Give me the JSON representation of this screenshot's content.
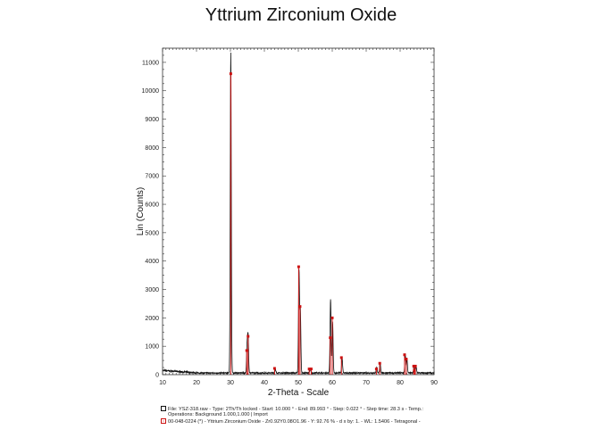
{
  "page": {
    "title": "Yttrium Zirconium Oxide"
  },
  "chart_data": {
    "type": "line",
    "title": "Yttrium Zirconium Oxide",
    "xlabel": "2-Theta - Scale",
    "ylabel": "Lin (Counts)",
    "xlim": [
      10,
      90
    ],
    "ylim": [
      0,
      11500
    ],
    "xticks": [
      10,
      20,
      30,
      40,
      50,
      60,
      70,
      80,
      90
    ],
    "yticks": [
      0,
      1000,
      2000,
      3000,
      4000,
      5000,
      6000,
      7000,
      8000,
      9000,
      10000,
      11000
    ],
    "grid": false,
    "series": [
      {
        "color": "#111111",
        "background": 60,
        "background_low_angle": {
          "start": 10,
          "end": 20,
          "value": 150
        },
        "peaks": [
          {
            "x": 30.1,
            "y": 11300,
            "w": 0.15
          },
          {
            "x": 34.9,
            "y": 900,
            "w": 0.15
          },
          {
            "x": 35.2,
            "y": 1300,
            "w": 0.15
          },
          {
            "x": 43.2,
            "y": 120,
            "w": 0.15
          },
          {
            "x": 50.2,
            "y": 3600,
            "w": 0.15
          },
          {
            "x": 50.6,
            "y": 2200,
            "w": 0.15
          },
          {
            "x": 53.5,
            "y": 120,
            "w": 0.15
          },
          {
            "x": 59.5,
            "y": 2600,
            "w": 0.15
          },
          {
            "x": 60.1,
            "y": 1800,
            "w": 0.15
          },
          {
            "x": 62.9,
            "y": 500,
            "w": 0.15
          },
          {
            "x": 73.1,
            "y": 200,
            "w": 0.15
          },
          {
            "x": 74.1,
            "y": 350,
            "w": 0.15
          },
          {
            "x": 81.5,
            "y": 650,
            "w": 0.15
          },
          {
            "x": 82.0,
            "y": 500,
            "w": 0.15
          },
          {
            "x": 84.1,
            "y": 250,
            "w": 0.15
          },
          {
            "x": 84.7,
            "y": 220,
            "w": 0.15
          }
        ]
      },
      {
        "color": "#cc1111",
        "type": "stick",
        "sticks": [
          {
            "x": 30.1,
            "y": 10600
          },
          {
            "x": 34.8,
            "y": 850
          },
          {
            "x": 35.2,
            "y": 1350
          },
          {
            "x": 43.0,
            "y": 220
          },
          {
            "x": 50.1,
            "y": 3800
          },
          {
            "x": 50.5,
            "y": 2400
          },
          {
            "x": 53.2,
            "y": 200
          },
          {
            "x": 53.8,
            "y": 200
          },
          {
            "x": 59.4,
            "y": 1300
          },
          {
            "x": 60.0,
            "y": 2000
          },
          {
            "x": 62.7,
            "y": 600
          },
          {
            "x": 73.0,
            "y": 200
          },
          {
            "x": 74.0,
            "y": 400
          },
          {
            "x": 81.3,
            "y": 700
          },
          {
            "x": 81.8,
            "y": 550
          },
          {
            "x": 84.0,
            "y": 300
          },
          {
            "x": 84.5,
            "y": 300
          },
          {
            "x": 84.2,
            "y": 150
          }
        ]
      }
    ],
    "legend": {
      "raw_label": "File: YSZ-318.raw - Type: 2Th/Th locked - Start: 10.000 ° - End: 89.993 ° - Step: 0.022 ° - Step time: 28.3 s - Temp.:",
      "raw_label_line2": "Operations: Background 1.000,1.000 | Import",
      "reference_label": "00-048-0224 (*) - Yttrium Zirconium Oxide - Zr0.92Y0.08O1.96 - Y: 92.76 % - d x by: 1. - WL: 1.5406 - Tetragonal -"
    }
  }
}
